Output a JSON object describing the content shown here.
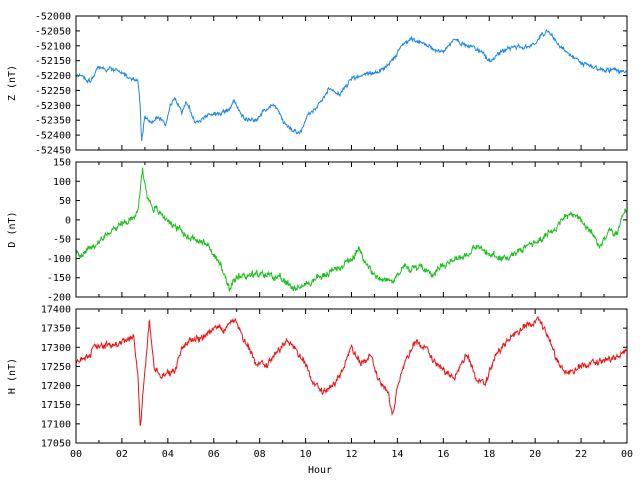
{
  "chart_data": {
    "type": "line",
    "x_title": "Hour",
    "x_ticks": [
      "00",
      "02",
      "04",
      "06",
      "08",
      "10",
      "12",
      "14",
      "16",
      "18",
      "20",
      "22",
      "00"
    ],
    "x_range": [
      0,
      24
    ],
    "panels": [
      {
        "id": "z",
        "ylabel": "Z (nT)",
        "ylim": [
          -52450,
          -52000
        ],
        "yticks": [
          -52000,
          -52050,
          -52100,
          -52150,
          -52200,
          -52250,
          -52300,
          -52350,
          -52400,
          -52450
        ],
        "color": "#1e88e5",
        "noise": 9,
        "seed": 11,
        "series": [
          {
            "x": 0.0,
            "y": -52205
          },
          {
            "x": 0.3,
            "y": -52200
          },
          {
            "x": 0.6,
            "y": -52220
          },
          {
            "x": 0.9,
            "y": -52180
          },
          {
            "x": 1.5,
            "y": -52175
          },
          {
            "x": 2.0,
            "y": -52190
          },
          {
            "x": 2.5,
            "y": -52215
          },
          {
            "x": 2.7,
            "y": -52220
          },
          {
            "x": 2.8,
            "y": -52310
          },
          {
            "x": 2.85,
            "y": -52420
          },
          {
            "x": 3.0,
            "y": -52340
          },
          {
            "x": 3.3,
            "y": -52360
          },
          {
            "x": 3.6,
            "y": -52340
          },
          {
            "x": 3.9,
            "y": -52370
          },
          {
            "x": 4.1,
            "y": -52300
          },
          {
            "x": 4.3,
            "y": -52270
          },
          {
            "x": 4.6,
            "y": -52320
          },
          {
            "x": 4.8,
            "y": -52290
          },
          {
            "x": 5.2,
            "y": -52360
          },
          {
            "x": 5.6,
            "y": -52340
          },
          {
            "x": 6.0,
            "y": -52330
          },
          {
            "x": 6.5,
            "y": -52320
          },
          {
            "x": 6.9,
            "y": -52290
          },
          {
            "x": 7.3,
            "y": -52340
          },
          {
            "x": 7.8,
            "y": -52350
          },
          {
            "x": 8.2,
            "y": -52320
          },
          {
            "x": 8.6,
            "y": -52290
          },
          {
            "x": 9.0,
            "y": -52350
          },
          {
            "x": 9.4,
            "y": -52380
          },
          {
            "x": 9.8,
            "y": -52390
          },
          {
            "x": 10.1,
            "y": -52330
          },
          {
            "x": 10.5,
            "y": -52310
          },
          {
            "x": 11.0,
            "y": -52250
          },
          {
            "x": 11.5,
            "y": -52260
          },
          {
            "x": 12.0,
            "y": -52210
          },
          {
            "x": 12.5,
            "y": -52200
          },
          {
            "x": 13.0,
            "y": -52190
          },
          {
            "x": 13.4,
            "y": -52180
          },
          {
            "x": 13.8,
            "y": -52150
          },
          {
            "x": 14.2,
            "y": -52100
          },
          {
            "x": 14.6,
            "y": -52080
          },
          {
            "x": 15.0,
            "y": -52090
          },
          {
            "x": 15.5,
            "y": -52105
          },
          {
            "x": 16.0,
            "y": -52120
          },
          {
            "x": 16.5,
            "y": -52080
          },
          {
            "x": 17.0,
            "y": -52095
          },
          {
            "x": 17.5,
            "y": -52110
          },
          {
            "x": 18.0,
            "y": -52150
          },
          {
            "x": 18.5,
            "y": -52120
          },
          {
            "x": 19.0,
            "y": -52100
          },
          {
            "x": 19.5,
            "y": -52110
          },
          {
            "x": 20.0,
            "y": -52090
          },
          {
            "x": 20.3,
            "y": -52060
          },
          {
            "x": 20.6,
            "y": -52050
          },
          {
            "x": 21.0,
            "y": -52090
          },
          {
            "x": 21.5,
            "y": -52130
          },
          {
            "x": 22.0,
            "y": -52160
          },
          {
            "x": 22.5,
            "y": -52170
          },
          {
            "x": 23.0,
            "y": -52180
          },
          {
            "x": 23.5,
            "y": -52180
          },
          {
            "x": 24.0,
            "y": -52190
          }
        ]
      },
      {
        "id": "d",
        "ylabel": "D (nT)",
        "ylim": [
          -200,
          150
        ],
        "yticks": [
          150,
          100,
          50,
          0,
          -50,
          -100,
          -150,
          -200
        ],
        "color": "#1ec01e",
        "noise": 11,
        "seed": 23,
        "series": [
          {
            "x": 0.0,
            "y": -80
          },
          {
            "x": 0.3,
            "y": -95
          },
          {
            "x": 0.6,
            "y": -75
          },
          {
            "x": 1.0,
            "y": -60
          },
          {
            "x": 1.3,
            "y": -40
          },
          {
            "x": 1.7,
            "y": -20
          },
          {
            "x": 2.0,
            "y": -10
          },
          {
            "x": 2.4,
            "y": 5
          },
          {
            "x": 2.7,
            "y": 20
          },
          {
            "x": 2.9,
            "y": 135
          },
          {
            "x": 3.1,
            "y": 60
          },
          {
            "x": 3.4,
            "y": 30
          },
          {
            "x": 3.8,
            "y": 10
          },
          {
            "x": 4.2,
            "y": -10
          },
          {
            "x": 4.8,
            "y": -40
          },
          {
            "x": 5.3,
            "y": -50
          },
          {
            "x": 5.8,
            "y": -70
          },
          {
            "x": 6.3,
            "y": -120
          },
          {
            "x": 6.7,
            "y": -185
          },
          {
            "x": 7.0,
            "y": -150
          },
          {
            "x": 7.5,
            "y": -140
          },
          {
            "x": 8.0,
            "y": -145
          },
          {
            "x": 8.5,
            "y": -140
          },
          {
            "x": 9.0,
            "y": -160
          },
          {
            "x": 9.5,
            "y": -175
          },
          {
            "x": 10.0,
            "y": -170
          },
          {
            "x": 10.5,
            "y": -150
          },
          {
            "x": 11.0,
            "y": -140
          },
          {
            "x": 11.5,
            "y": -120
          },
          {
            "x": 12.0,
            "y": -100
          },
          {
            "x": 12.3,
            "y": -80
          },
          {
            "x": 12.6,
            "y": -100
          },
          {
            "x": 12.9,
            "y": -140
          },
          {
            "x": 13.3,
            "y": -150
          },
          {
            "x": 13.8,
            "y": -160
          },
          {
            "x": 14.2,
            "y": -120
          },
          {
            "x": 14.6,
            "y": -130
          },
          {
            "x": 15.0,
            "y": -120
          },
          {
            "x": 15.5,
            "y": -140
          },
          {
            "x": 16.0,
            "y": -115
          },
          {
            "x": 16.5,
            "y": -100
          },
          {
            "x": 17.0,
            "y": -90
          },
          {
            "x": 17.5,
            "y": -70
          },
          {
            "x": 18.0,
            "y": -90
          },
          {
            "x": 18.5,
            "y": -100
          },
          {
            "x": 19.0,
            "y": -90
          },
          {
            "x": 19.5,
            "y": -70
          },
          {
            "x": 20.0,
            "y": -60
          },
          {
            "x": 20.5,
            "y": -40
          },
          {
            "x": 21.0,
            "y": -10
          },
          {
            "x": 21.5,
            "y": 15
          },
          {
            "x": 22.0,
            "y": 0
          },
          {
            "x": 22.5,
            "y": -40
          },
          {
            "x": 22.8,
            "y": -70
          },
          {
            "x": 23.2,
            "y": -30
          },
          {
            "x": 23.6,
            "y": -35
          },
          {
            "x": 23.9,
            "y": 20
          },
          {
            "x": 24.0,
            "y": 15
          }
        ]
      },
      {
        "id": "h",
        "ylabel": "H (nT)",
        "ylim": [
          17050,
          17400
        ],
        "yticks": [
          17400,
          17350,
          17300,
          17250,
          17200,
          17150,
          17100,
          17050
        ],
        "color": "#ee1111",
        "noise": 11,
        "seed": 37,
        "series": [
          {
            "x": 0.0,
            "y": 17260
          },
          {
            "x": 0.4,
            "y": 17270
          },
          {
            "x": 0.8,
            "y": 17300
          },
          {
            "x": 1.2,
            "y": 17305
          },
          {
            "x": 1.8,
            "y": 17310
          },
          {
            "x": 2.2,
            "y": 17320
          },
          {
            "x": 2.5,
            "y": 17330
          },
          {
            "x": 2.7,
            "y": 17220
          },
          {
            "x": 2.8,
            "y": 17080
          },
          {
            "x": 2.95,
            "y": 17200
          },
          {
            "x": 3.2,
            "y": 17360
          },
          {
            "x": 3.4,
            "y": 17250
          },
          {
            "x": 3.7,
            "y": 17220
          },
          {
            "x": 4.0,
            "y": 17230
          },
          {
            "x": 4.3,
            "y": 17240
          },
          {
            "x": 4.6,
            "y": 17300
          },
          {
            "x": 5.0,
            "y": 17320
          },
          {
            "x": 5.5,
            "y": 17320
          },
          {
            "x": 6.0,
            "y": 17350
          },
          {
            "x": 6.5,
            "y": 17340
          },
          {
            "x": 6.9,
            "y": 17375
          },
          {
            "x": 7.3,
            "y": 17320
          },
          {
            "x": 7.8,
            "y": 17260
          },
          {
            "x": 8.3,
            "y": 17250
          },
          {
            "x": 8.8,
            "y": 17290
          },
          {
            "x": 9.2,
            "y": 17320
          },
          {
            "x": 9.6,
            "y": 17290
          },
          {
            "x": 10.0,
            "y": 17250
          },
          {
            "x": 10.4,
            "y": 17200
          },
          {
            "x": 10.8,
            "y": 17180
          },
          {
            "x": 11.2,
            "y": 17200
          },
          {
            "x": 11.6,
            "y": 17240
          },
          {
            "x": 12.0,
            "y": 17300
          },
          {
            "x": 12.4,
            "y": 17250
          },
          {
            "x": 12.8,
            "y": 17280
          },
          {
            "x": 13.2,
            "y": 17210
          },
          {
            "x": 13.6,
            "y": 17180
          },
          {
            "x": 13.8,
            "y": 17120
          },
          {
            "x": 14.0,
            "y": 17200
          },
          {
            "x": 14.4,
            "y": 17270
          },
          {
            "x": 14.8,
            "y": 17310
          },
          {
            "x": 15.2,
            "y": 17300
          },
          {
            "x": 15.6,
            "y": 17260
          },
          {
            "x": 16.0,
            "y": 17240
          },
          {
            "x": 16.5,
            "y": 17220
          },
          {
            "x": 17.0,
            "y": 17280
          },
          {
            "x": 17.4,
            "y": 17220
          },
          {
            "x": 17.8,
            "y": 17200
          },
          {
            "x": 18.3,
            "y": 17280
          },
          {
            "x": 18.8,
            "y": 17320
          },
          {
            "x": 19.3,
            "y": 17340
          },
          {
            "x": 19.8,
            "y": 17360
          },
          {
            "x": 20.2,
            "y": 17370
          },
          {
            "x": 20.6,
            "y": 17320
          },
          {
            "x": 21.0,
            "y": 17260
          },
          {
            "x": 21.4,
            "y": 17230
          },
          {
            "x": 21.8,
            "y": 17240
          },
          {
            "x": 22.3,
            "y": 17255
          },
          {
            "x": 22.8,
            "y": 17260
          },
          {
            "x": 23.3,
            "y": 17270
          },
          {
            "x": 23.7,
            "y": 17280
          },
          {
            "x": 24.0,
            "y": 17290
          }
        ]
      }
    ]
  }
}
